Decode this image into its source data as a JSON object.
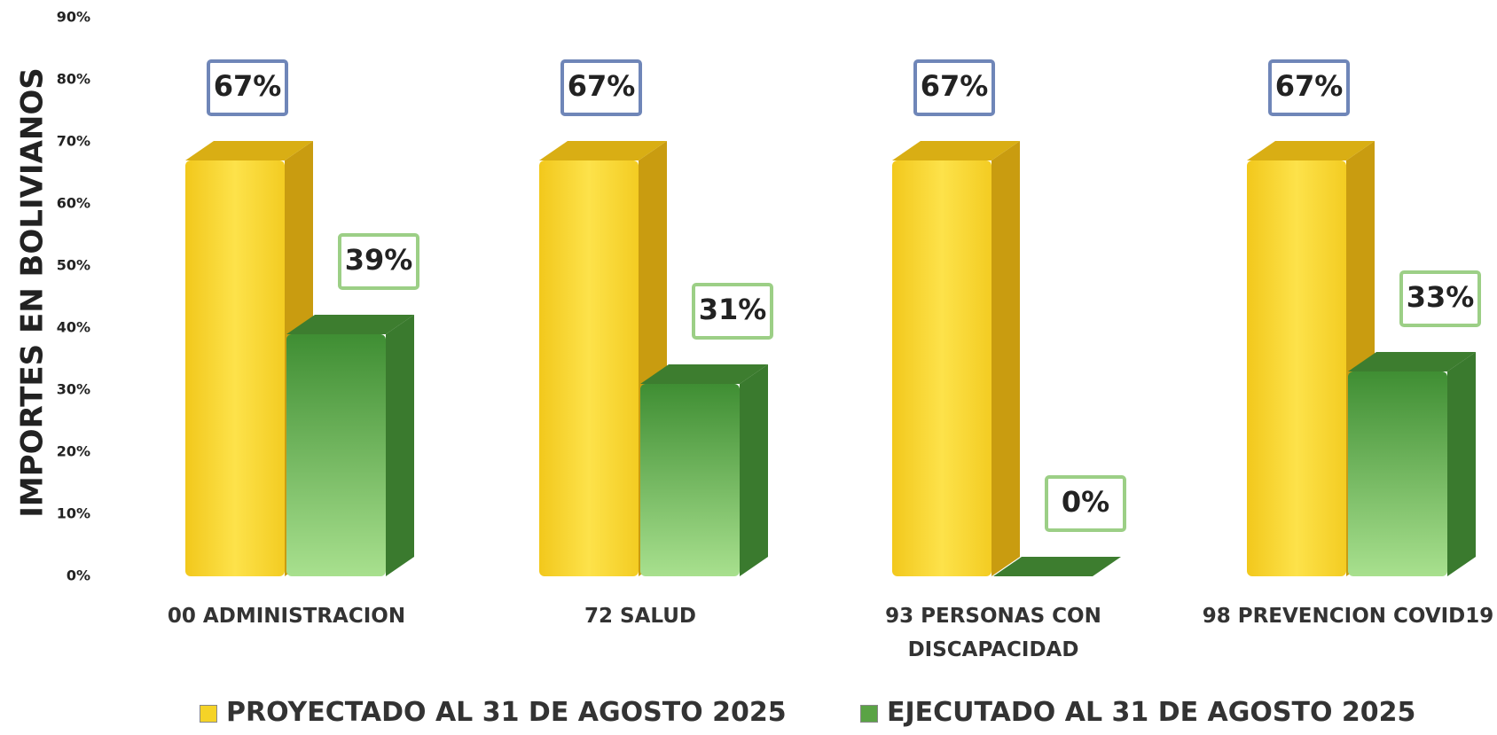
{
  "chart_data": {
    "type": "bar3d",
    "y_label": "IMPORTES EN BOLIVIANOS",
    "categories": [
      "00 ADMINISTRACION",
      "72 SALUD",
      "93 PERSONAS CON DISCAPACIDAD",
      "98 PREVENCION COVID19"
    ],
    "series": [
      {
        "name": "PROYECTADO AL 31 DE AGOSTO 2025",
        "color": "#f5d327",
        "values": [
          67,
          67,
          67,
          67
        ],
        "value_labels": [
          "67%",
          "67%",
          "67%",
          "67%"
        ],
        "label_border": "#6f86b8"
      },
      {
        "name": "EJECUTADO AL 31 DE AGOSTO 2025",
        "color": "#5aa345",
        "values": [
          39,
          31,
          0,
          33
        ],
        "value_labels": [
          "39%",
          "31%",
          "0%",
          "33%"
        ],
        "label_border": "#9ccf86"
      }
    ],
    "ylim": [
      0,
      90
    ],
    "yticks": [
      {
        "value": 0,
        "label": "0%"
      },
      {
        "value": 10,
        "label": "10%"
      },
      {
        "value": 20,
        "label": "20%"
      },
      {
        "value": 30,
        "label": "30%"
      },
      {
        "value": 40,
        "label": "40%"
      },
      {
        "value": 50,
        "label": "50%"
      },
      {
        "value": 60,
        "label": "60%"
      },
      {
        "value": 70,
        "label": "70%"
      },
      {
        "value": 80,
        "label": "80%"
      },
      {
        "value": 90,
        "label": "90%"
      }
    ],
    "grid": false
  }
}
